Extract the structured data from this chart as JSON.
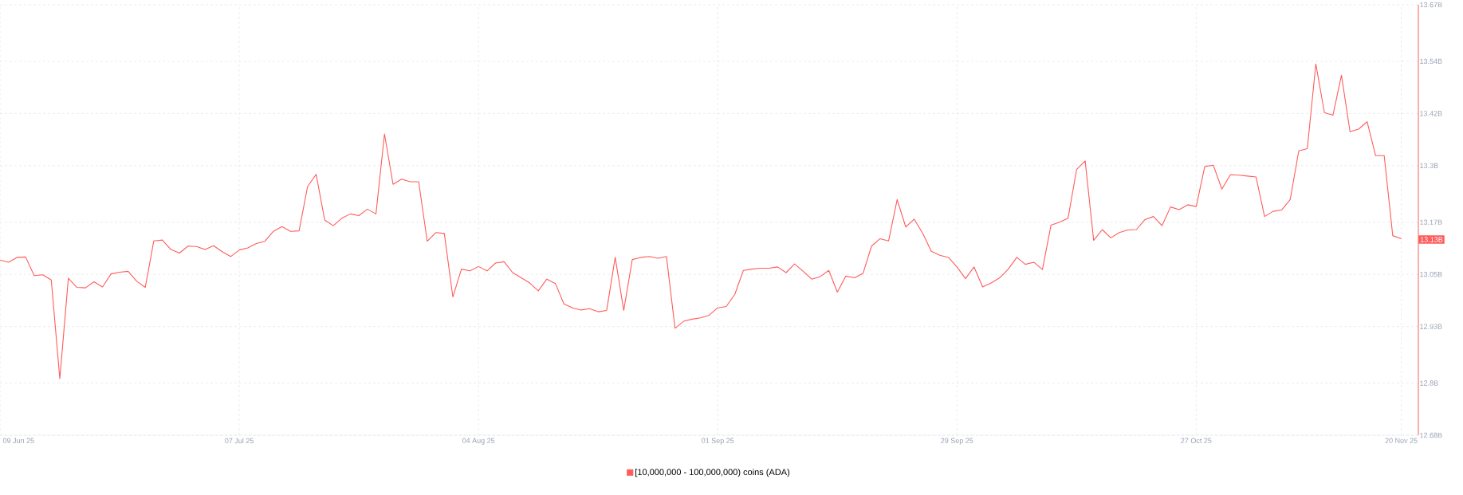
{
  "chart_data": {
    "type": "line",
    "x": [
      "2025-06-09",
      "2025-06-10",
      "2025-06-11",
      "2025-06-12",
      "2025-06-13",
      "2025-06-14",
      "2025-06-15",
      "2025-06-16",
      "2025-06-17",
      "2025-06-18",
      "2025-06-19",
      "2025-06-20",
      "2025-06-21",
      "2025-06-22",
      "2025-06-23",
      "2025-06-24",
      "2025-06-25",
      "2025-06-26",
      "2025-06-27",
      "2025-06-28",
      "2025-06-29",
      "2025-06-30",
      "2025-07-01",
      "2025-07-02",
      "2025-07-03",
      "2025-07-04",
      "2025-07-05",
      "2025-07-06",
      "2025-07-07",
      "2025-07-08",
      "2025-07-09",
      "2025-07-10",
      "2025-07-11",
      "2025-07-12",
      "2025-07-13",
      "2025-07-14",
      "2025-07-15",
      "2025-07-16",
      "2025-07-17",
      "2025-07-18",
      "2025-07-19",
      "2025-07-20",
      "2025-07-21",
      "2025-07-22",
      "2025-07-23",
      "2025-07-24",
      "2025-07-25",
      "2025-07-26",
      "2025-07-27",
      "2025-07-28",
      "2025-07-29",
      "2025-07-30",
      "2025-07-31",
      "2025-08-01",
      "2025-08-02",
      "2025-08-03",
      "2025-08-04",
      "2025-08-05",
      "2025-08-06",
      "2025-08-07",
      "2025-08-08",
      "2025-08-09",
      "2025-08-10",
      "2025-08-11",
      "2025-08-12",
      "2025-08-13",
      "2025-08-14",
      "2025-08-15",
      "2025-08-16",
      "2025-08-17",
      "2025-08-18",
      "2025-08-19",
      "2025-08-20",
      "2025-08-21",
      "2025-08-22",
      "2025-08-23",
      "2025-08-24",
      "2025-08-25",
      "2025-08-26",
      "2025-08-27",
      "2025-08-28",
      "2025-08-29",
      "2025-08-30",
      "2025-08-31",
      "2025-09-01",
      "2025-09-02",
      "2025-09-03",
      "2025-09-04",
      "2025-09-05",
      "2025-09-06",
      "2025-09-07",
      "2025-09-08",
      "2025-09-09",
      "2025-09-10",
      "2025-09-11",
      "2025-09-12",
      "2025-09-13",
      "2025-09-14",
      "2025-09-15",
      "2025-09-16",
      "2025-09-17",
      "2025-09-18",
      "2025-09-19",
      "2025-09-20",
      "2025-09-21",
      "2025-09-22",
      "2025-09-23",
      "2025-09-24",
      "2025-09-25",
      "2025-09-26",
      "2025-09-27",
      "2025-09-28",
      "2025-09-29",
      "2025-09-30",
      "2025-10-01",
      "2025-10-02",
      "2025-10-03",
      "2025-10-04",
      "2025-10-05",
      "2025-10-06",
      "2025-10-07",
      "2025-10-08",
      "2025-10-09",
      "2025-10-10",
      "2025-10-11",
      "2025-10-12",
      "2025-10-13",
      "2025-10-14",
      "2025-10-15",
      "2025-10-16",
      "2025-10-17",
      "2025-10-18",
      "2025-10-19",
      "2025-10-20",
      "2025-10-21",
      "2025-10-22",
      "2025-10-23",
      "2025-10-24",
      "2025-10-25",
      "2025-10-26",
      "2025-10-27",
      "2025-10-28",
      "2025-10-29",
      "2025-10-30",
      "2025-10-31",
      "2025-11-01",
      "2025-11-02",
      "2025-11-03",
      "2025-11-04",
      "2025-11-05",
      "2025-11-06",
      "2025-11-07",
      "2025-11-08",
      "2025-11-09",
      "2025-11-10",
      "2025-11-11",
      "2025-11-12",
      "2025-11-13",
      "2025-11-14",
      "2025-11-15",
      "2025-11-16",
      "2025-11-17",
      "2025-11-18",
      "2025-11-19",
      "2025-11-20"
    ],
    "series": [
      {
        "name": "[10,000,000 - 100,000,000) coins (ADA)",
        "color": "#ff5c5c",
        "values": [
          13.083,
          13.078,
          13.089,
          13.09,
          13.047,
          13.049,
          13.037,
          12.81,
          13.041,
          13.02,
          13.019,
          13.033,
          13.021,
          13.051,
          13.055,
          13.057,
          13.034,
          13.02,
          13.127,
          13.129,
          13.107,
          13.099,
          13.115,
          13.114,
          13.107,
          13.116,
          13.102,
          13.091,
          13.106,
          13.111,
          13.121,
          13.126,
          13.149,
          13.16,
          13.149,
          13.15,
          13.252,
          13.28,
          13.175,
          13.162,
          13.179,
          13.189,
          13.185,
          13.2,
          13.189,
          13.373,
          13.257,
          13.269,
          13.263,
          13.263,
          13.126,
          13.146,
          13.144,
          12.998,
          13.062,
          13.058,
          13.068,
          13.058,
          13.076,
          13.079,
          13.054,
          13.042,
          13.03,
          13.012,
          13.039,
          13.029,
          12.982,
          12.973,
          12.968,
          12.971,
          12.964,
          12.967,
          13.089,
          12.967,
          13.084,
          13.089,
          13.091,
          13.087,
          13.091,
          12.926,
          12.942,
          12.947,
          12.95,
          12.956,
          12.973,
          12.976,
          13.004,
          13.059,
          13.062,
          13.064,
          13.064,
          13.067,
          13.054,
          13.074,
          13.057,
          13.039,
          13.045,
          13.059,
          13.009,
          13.046,
          13.042,
          13.052,
          13.115,
          13.132,
          13.127,
          13.222,
          13.159,
          13.177,
          13.144,
          13.103,
          13.094,
          13.089,
          13.067,
          13.04,
          13.067,
          13.021,
          13.03,
          13.042,
          13.062,
          13.089,
          13.073,
          13.078,
          13.061,
          13.163,
          13.17,
          13.179,
          13.291,
          13.311,
          13.128,
          13.153,
          13.134,
          13.146,
          13.152,
          13.153,
          13.176,
          13.183,
          13.162,
          13.205,
          13.199,
          13.21,
          13.206,
          13.298,
          13.301,
          13.246,
          13.279,
          13.278,
          13.276,
          13.274,
          13.183,
          13.195,
          13.198,
          13.222,
          13.334,
          13.339,
          13.534,
          13.422,
          13.416,
          13.508,
          13.378,
          13.384,
          13.401,
          13.323,
          13.323,
          13.139,
          13.132
        ]
      }
    ],
    "xlim": [
      "2025-06-09",
      "2025-11-22"
    ],
    "ylim": [
      12.68,
      13.67
    ],
    "xticks": [
      {
        "value": "2025-06-09",
        "label": "09 Jun 25"
      },
      {
        "value": "2025-07-07",
        "label": "07 Jul 25"
      },
      {
        "value": "2025-08-04",
        "label": "04 Aug 25"
      },
      {
        "value": "2025-09-01",
        "label": "01 Sep 25"
      },
      {
        "value": "2025-09-29",
        "label": "29 Sep 25"
      },
      {
        "value": "2025-10-27",
        "label": "27 Oct 25"
      },
      {
        "value": "2025-11-20",
        "label": "20 Nov 25"
      }
    ],
    "yticks": [
      {
        "value": 12.68,
        "label": "12.68B"
      },
      {
        "value": 12.8,
        "label": "12.8B"
      },
      {
        "value": 12.93,
        "label": "12.93B"
      },
      {
        "value": 13.05,
        "label": "13.05B"
      },
      {
        "value": 13.17,
        "label": "13.17B"
      },
      {
        "value": 13.3,
        "label": "13.3B"
      },
      {
        "value": 13.42,
        "label": "13.42B"
      },
      {
        "value": 13.54,
        "label": "13.54B"
      },
      {
        "value": 13.67,
        "label": "13.67B"
      }
    ],
    "grid": true,
    "legend": "bottom",
    "annotations": [
      {
        "text": "13.13B",
        "y": 13.13
      }
    ]
  }
}
